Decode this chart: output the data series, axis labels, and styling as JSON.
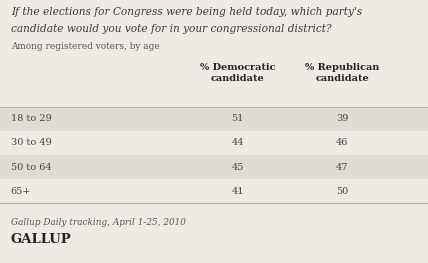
{
  "title_line1": "If the elections for Congress were being held today, which party's",
  "title_line2": "candidate would you vote for in your congressional district?",
  "subtitle": "Among registered voters, by age",
  "col1_header": "% Democratic\ncandidate",
  "col2_header": "% Republican\ncandidate",
  "rows": [
    {
      "age": "18 to 29",
      "dem": 51,
      "rep": 39,
      "shaded": true
    },
    {
      "age": "30 to 49",
      "dem": 44,
      "rep": 46,
      "shaded": false
    },
    {
      "age": "50 to 64",
      "dem": 45,
      "rep": 47,
      "shaded": true
    },
    {
      "age": "65+",
      "dem": 41,
      "rep": 50,
      "shaded": false
    }
  ],
  "footnote": "Gallup Daily tracking, April 1-25, 2010",
  "brand": "GALLUP",
  "bg_color": "#eeebe5",
  "shaded_color": "#e0dcd5",
  "title_color": "#3a3a3a",
  "header_color": "#222222",
  "data_color": "#444444",
  "subtitle_color": "#555555",
  "footnote_color": "#555555",
  "brand_color": "#222222",
  "line_color": "#b5b0aa"
}
